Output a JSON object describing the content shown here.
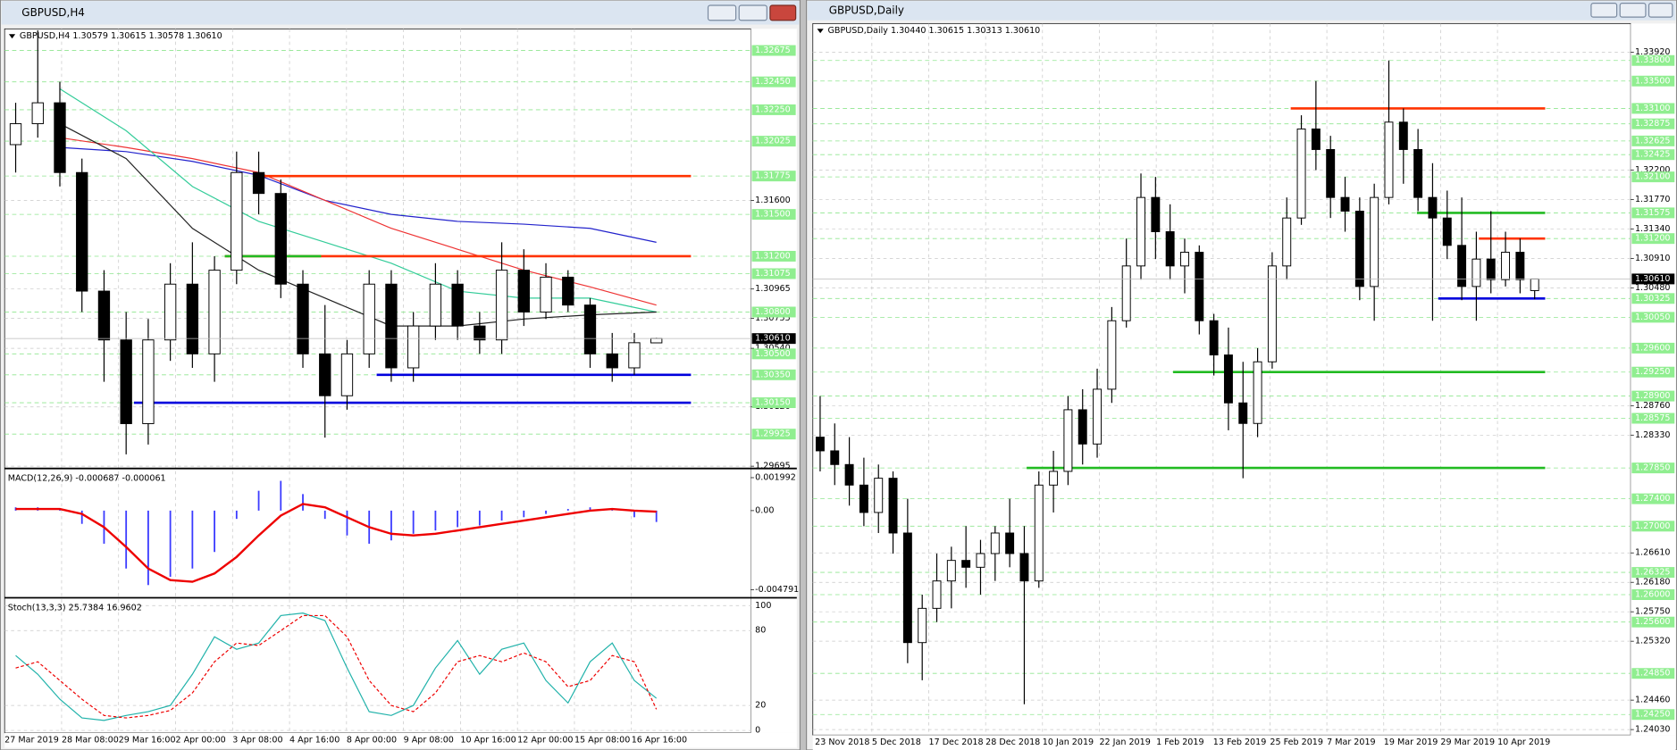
{
  "windows": [
    {
      "title": "GBPUSD,H4",
      "info": "GBPUSD,H4  1.30579 1.30615 1.30578 1.30610",
      "ylim": [
        1.2969,
        1.3283
      ],
      "yticks": [
        {
          "value": 1.316,
          "label": "1.31600"
        },
        1.30965,
        1.30755,
        {
          "value": 1.3054,
          "label": "1.30540"
        },
        {
          "value": 1.3012,
          "label": "1.30120"
        },
        1.29695
      ],
      "levels": [
        1.32675,
        {
          "value": 1.3245,
          "label": "1.32450"
        },
        {
          "value": 1.3225,
          "label": "1.32250"
        },
        1.32025,
        1.31775,
        {
          "value": 1.315,
          "label": "1.31500"
        },
        {
          "value": 1.312,
          "label": "1.31200"
        },
        1.31075,
        {
          "value": 1.308,
          "label": "1.30800"
        },
        {
          "value": 1.305,
          "label": "1.30500"
        },
        {
          "value": 1.3035,
          "label": "1.30350"
        },
        {
          "value": 1.3015,
          "label": "1.30150"
        },
        1.29925
      ],
      "current": {
        "value": 1.3061,
        "label": "1.30610"
      },
      "lines": [
        {
          "value": 1.31775,
          "color": "#ff3300"
        },
        {
          "value": 1.312,
          "color": "#ff3300"
        },
        {
          "value": 1.312,
          "color": "#22bb22"
        },
        {
          "value": 1.3035,
          "color": "#0000dd"
        },
        {
          "value": 1.3015,
          "color": "#0000dd"
        }
      ],
      "times": [
        "27 Mar 2019",
        "28 Mar 08:00",
        "29 Mar 16:00",
        "2 Apr 00:00",
        "3 Apr 08:00",
        "4 Apr 16:00",
        "8 Apr 00:00",
        "9 Apr 08:00",
        "10 Apr 16:00",
        "12 Apr 00:00",
        "15 Apr 08:00",
        "16 Apr 16:00"
      ],
      "candles": [
        [
          1.32,
          1.323,
          1.318,
          1.3215
        ],
        [
          1.3215,
          1.3282,
          1.3205,
          1.323
        ],
        [
          1.323,
          1.3245,
          1.317,
          1.318
        ],
        [
          1.318,
          1.319,
          1.308,
          1.3095
        ],
        [
          1.3095,
          1.311,
          1.303,
          1.306
        ],
        [
          1.306,
          1.308,
          1.2978,
          1.3
        ],
        [
          1.3,
          1.3075,
          1.2985,
          1.306
        ],
        [
          1.306,
          1.3115,
          1.3045,
          1.31
        ],
        [
          1.31,
          1.313,
          1.304,
          1.305
        ],
        [
          1.305,
          1.312,
          1.303,
          1.311
        ],
        [
          1.311,
          1.3195,
          1.31,
          1.318
        ],
        [
          1.318,
          1.3195,
          1.315,
          1.3165
        ],
        [
          1.3165,
          1.3175,
          1.309,
          1.31
        ],
        [
          1.31,
          1.311,
          1.304,
          1.305
        ],
        [
          1.305,
          1.3085,
          1.299,
          1.302
        ],
        [
          1.302,
          1.306,
          1.301,
          1.305
        ],
        [
          1.305,
          1.311,
          1.304,
          1.31
        ],
        [
          1.31,
          1.311,
          1.303,
          1.304
        ],
        [
          1.304,
          1.308,
          1.303,
          1.307
        ],
        [
          1.307,
          1.3115,
          1.306,
          1.31
        ],
        [
          1.31,
          1.311,
          1.306,
          1.307
        ],
        [
          1.307,
          1.308,
          1.305,
          1.306
        ],
        [
          1.306,
          1.313,
          1.305,
          1.311
        ],
        [
          1.311,
          1.3125,
          1.307,
          1.308
        ],
        [
          1.308,
          1.3115,
          1.3075,
          1.3105
        ],
        [
          1.3105,
          1.311,
          1.308,
          1.3085
        ],
        [
          1.3085,
          1.309,
          1.304,
          1.305
        ],
        [
          1.305,
          1.3065,
          1.303,
          1.304
        ],
        [
          1.304,
          1.3065,
          1.3035,
          1.3058
        ],
        [
          1.30579,
          1.30615,
          1.30578,
          1.3061
        ]
      ],
      "ma": [
        {
          "color": "#2222cc",
          "values": [
            1.3198,
            1.3195,
            1.3188,
            1.3178,
            1.316,
            1.315,
            1.3145,
            1.3143,
            1.314,
            1.313
          ]
        },
        {
          "color": "#ee3333",
          "values": [
            1.3205,
            1.3198,
            1.319,
            1.318,
            1.316,
            1.314,
            1.3125,
            1.311,
            1.3098,
            1.3085
          ]
        },
        {
          "color": "#33cc99",
          "values": [
            1.324,
            1.321,
            1.317,
            1.3145,
            1.313,
            1.3115,
            1.3095,
            1.309,
            1.309,
            1.308
          ]
        },
        {
          "color": "#222222",
          "values": [
            1.3215,
            1.319,
            1.314,
            1.311,
            1.309,
            1.307,
            1.307,
            1.3075,
            1.3078,
            1.308
          ]
        }
      ],
      "macd": {
        "label": "MACD(12,26,9) -0.000687 -0.000061",
        "ylim": [
          -0.00517,
          0.00245
        ],
        "yticks": [
          0.001992,
          {
            "value": 0,
            "label": "0.00"
          },
          -0.004791
        ],
        "histogram": [
          0.0002,
          0.0002,
          0.0001,
          -0.0008,
          -0.002,
          -0.0035,
          -0.0045,
          -0.004,
          -0.0035,
          -0.0025,
          -0.0005,
          0.0012,
          0.0018,
          0.001,
          -0.0005,
          -0.0015,
          -0.002,
          -0.0018,
          -0.0014,
          -0.0012,
          -0.001,
          -0.0009,
          -0.0006,
          -0.0004,
          -0.0002,
          0.0001,
          0.0002,
          0.0001,
          -0.0004,
          -0.000687
        ],
        "signal": [
          0.0001,
          0.0001,
          0.0001,
          -0.0002,
          -0.001,
          -0.0022,
          -0.0035,
          -0.0042,
          -0.0043,
          -0.0038,
          -0.0028,
          -0.0015,
          -0.0003,
          0.0004,
          0.0002,
          -0.0004,
          -0.001,
          -0.0014,
          -0.0015,
          -0.0014,
          -0.0012,
          -0.001,
          -0.0008,
          -0.0006,
          -0.0004,
          -0.0002,
          0,
          0.0001,
          0,
          -6.1e-05
        ]
      },
      "stoch": {
        "label": "Stoch(13,3,3) 25.7384 16.9602",
        "ylim": [
          -2,
          105
        ],
        "yticks": [
          100,
          80,
          20,
          0
        ],
        "main": [
          60,
          45,
          25,
          10,
          8,
          12,
          15,
          20,
          45,
          75,
          65,
          70,
          92,
          94,
          88,
          50,
          15,
          12,
          20,
          50,
          72,
          45,
          65,
          70,
          40,
          22,
          55,
          70,
          40,
          25.7384
        ],
        "signal": [
          50,
          55,
          40,
          25,
          12,
          10,
          12,
          16,
          30,
          55,
          70,
          68,
          80,
          92,
          92,
          75,
          40,
          20,
          15,
          30,
          55,
          60,
          55,
          62,
          55,
          35,
          40,
          60,
          55,
          16.9602
        ]
      }
    },
    {
      "title": "GBPUSD,Daily",
      "info": "GBPUSD,Daily  1.30440 1.30615 1.30313 1.30610",
      "ylim": [
        1.2395,
        1.3434
      ],
      "yticks": [
        {
          "value": 1.3392,
          "label": "1.33920"
        },
        {
          "value": 1.322,
          "label": "1.32200"
        },
        {
          "value": 1.3177,
          "label": "1.31770"
        },
        {
          "value": 1.3134,
          "label": "1.31340"
        },
        {
          "value": 1.3091,
          "label": "1.30910"
        },
        {
          "value": 1.3048,
          "label": "1.30480"
        },
        {
          "value": 1.2876,
          "label": "1.28760"
        },
        {
          "value": 1.2833,
          "label": "1.28330"
        },
        {
          "value": 1.2661,
          "label": "1.26610"
        },
        {
          "value": 1.2618,
          "label": "1.26180"
        },
        {
          "value": 1.2575,
          "label": "1.25750"
        },
        {
          "value": 1.2532,
          "label": "1.25320"
        },
        {
          "value": 1.2446,
          "label": "1.24460"
        },
        {
          "value": 1.2403,
          "label": "1.24030"
        }
      ],
      "levels": [
        {
          "value": 1.338,
          "label": "1.33800"
        },
        {
          "value": 1.335,
          "label": "1.33500"
        },
        {
          "value": 1.331,
          "label": "1.33100"
        },
        1.32875,
        1.32625,
        1.32425,
        {
          "value": 1.321,
          "label": "1.32100"
        },
        1.31575,
        {
          "value": 1.312,
          "label": "1.31200"
        },
        1.30325,
        {
          "value": 1.3005,
          "label": "1.30050"
        },
        {
          "value": 1.296,
          "label": "1.29600"
        },
        {
          "value": 1.2925,
          "label": "1.29250"
        },
        {
          "value": 1.289,
          "label": "1.28900"
        },
        1.28575,
        {
          "value": 1.2785,
          "label": "1.27850"
        },
        {
          "value": 1.274,
          "label": "1.27400"
        },
        {
          "value": 1.27,
          "label": "1.27000"
        },
        1.26325,
        {
          "value": 1.26,
          "label": "1.26000"
        },
        {
          "value": 1.256,
          "label": "1.25600"
        },
        {
          "value": 1.2485,
          "label": "1.24850"
        },
        {
          "value": 1.2425,
          "label": "1.24250"
        }
      ],
      "current": {
        "value": 1.3061,
        "label": "1.30610"
      },
      "lines": [
        {
          "value": 1.331,
          "color": "#ff3300"
        },
        {
          "value": 1.31575,
          "color": "#22bb22"
        },
        {
          "value": 1.312,
          "color": "#ff3300"
        },
        {
          "value": 1.30325,
          "color": "#0000dd"
        },
        {
          "value": 1.2925,
          "color": "#22bb22"
        },
        {
          "value": 1.2785,
          "color": "#22bb22"
        }
      ],
      "times": [
        "23 Nov 2018",
        "5 Dec 2018",
        "17 Dec 2018",
        "28 Dec 2018",
        "10 Jan 2019",
        "22 Jan 2019",
        "1 Feb 2019",
        "13 Feb 2019",
        "25 Feb 2019",
        "7 Mar 2019",
        "19 Mar 2019",
        "29 Mar 2019",
        "10 Apr 2019"
      ],
      "candles": [
        [
          1.283,
          1.289,
          1.278,
          1.281
        ],
        [
          1.281,
          1.285,
          1.276,
          1.279
        ],
        [
          1.279,
          1.283,
          1.273,
          1.276
        ],
        [
          1.276,
          1.28,
          1.27,
          1.272
        ],
        [
          1.272,
          1.279,
          1.269,
          1.277
        ],
        [
          1.277,
          1.278,
          1.266,
          1.269
        ],
        [
          1.269,
          1.274,
          1.25,
          1.253
        ],
        [
          1.253,
          1.26,
          1.2475,
          1.258
        ],
        [
          1.258,
          1.266,
          1.256,
          1.262
        ],
        [
          1.262,
          1.267,
          1.258,
          1.265
        ],
        [
          1.265,
          1.27,
          1.261,
          1.264
        ],
        [
          1.264,
          1.268,
          1.26,
          1.266
        ],
        [
          1.266,
          1.27,
          1.262,
          1.269
        ],
        [
          1.269,
          1.274,
          1.264,
          1.266
        ],
        [
          1.266,
          1.27,
          1.244,
          1.262
        ],
        [
          1.262,
          1.278,
          1.261,
          1.276
        ],
        [
          1.276,
          1.281,
          1.272,
          1.278
        ],
        [
          1.278,
          1.289,
          1.276,
          1.287
        ],
        [
          1.287,
          1.29,
          1.279,
          1.282
        ],
        [
          1.282,
          1.293,
          1.28,
          1.29
        ],
        [
          1.29,
          1.302,
          1.288,
          1.3
        ],
        [
          1.3,
          1.312,
          1.299,
          1.308
        ],
        [
          1.308,
          1.3215,
          1.306,
          1.318
        ],
        [
          1.318,
          1.321,
          1.309,
          1.313
        ],
        [
          1.313,
          1.317,
          1.306,
          1.308
        ],
        [
          1.308,
          1.312,
          1.304,
          1.31
        ],
        [
          1.31,
          1.311,
          1.298,
          1.3
        ],
        [
          1.3,
          1.301,
          1.292,
          1.295
        ],
        [
          1.295,
          1.299,
          1.284,
          1.288
        ],
        [
          1.288,
          1.294,
          1.277,
          1.285
        ],
        [
          1.285,
          1.296,
          1.283,
          1.294
        ],
        [
          1.294,
          1.31,
          1.293,
          1.308
        ],
        [
          1.308,
          1.318,
          1.306,
          1.315
        ],
        [
          1.315,
          1.33,
          1.314,
          1.328
        ],
        [
          1.328,
          1.335,
          1.322,
          1.325
        ],
        [
          1.325,
          1.327,
          1.315,
          1.318
        ],
        [
          1.318,
          1.321,
          1.313,
          1.316
        ],
        [
          1.316,
          1.318,
          1.303,
          1.305
        ],
        [
          1.305,
          1.32,
          1.3,
          1.318
        ],
        [
          1.318,
          1.338,
          1.317,
          1.329
        ],
        [
          1.329,
          1.331,
          1.32,
          1.325
        ],
        [
          1.325,
          1.328,
          1.316,
          1.318
        ],
        [
          1.318,
          1.323,
          1.3,
          1.315
        ],
        [
          1.315,
          1.319,
          1.309,
          1.311
        ],
        [
          1.311,
          1.318,
          1.303,
          1.305
        ],
        [
          1.305,
          1.313,
          1.3,
          1.309
        ],
        [
          1.309,
          1.316,
          1.304,
          1.306
        ],
        [
          1.306,
          1.313,
          1.305,
          1.31
        ],
        [
          1.31,
          1.312,
          1.304,
          1.306
        ],
        [
          1.3044,
          1.30615,
          1.30313,
          1.3061
        ]
      ]
    }
  ]
}
